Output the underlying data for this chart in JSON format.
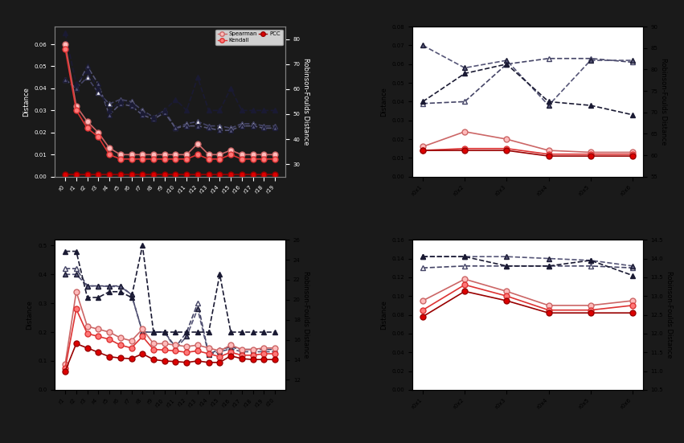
{
  "bg_color": "#1a1a1a",
  "subplot_bg_tl": "#1a1a1a",
  "subplot_bg_other": "#ffffff",
  "tl_xlabel_vals": [
    "r0",
    "r1",
    "r2",
    "r3",
    "r4",
    "r5",
    "r6",
    "r7",
    "r8",
    "r9",
    "r10",
    "r11",
    "r12",
    "r13",
    "r14",
    "r15",
    "r16",
    "r17",
    "r18",
    "r19"
  ],
  "tl_ylim": [
    0.0,
    0.068
  ],
  "tl_y2lim": [
    25,
    85
  ],
  "tl_spearman": [
    0.06,
    0.032,
    0.025,
    0.02,
    0.013,
    0.01,
    0.01,
    0.01,
    0.01,
    0.01,
    0.01,
    0.01,
    0.015,
    0.01,
    0.01,
    0.012,
    0.01,
    0.01,
    0.01,
    0.01
  ],
  "tl_kendall": [
    0.058,
    0.03,
    0.022,
    0.018,
    0.01,
    0.008,
    0.008,
    0.008,
    0.008,
    0.008,
    0.008,
    0.008,
    0.01,
    0.008,
    0.008,
    0.01,
    0.008,
    0.008,
    0.008,
    0.008
  ],
  "tl_pcc": [
    0.001,
    0.001,
    0.001,
    0.001,
    0.001,
    0.001,
    0.001,
    0.001,
    0.001,
    0.001,
    0.001,
    0.001,
    0.001,
    0.001,
    0.001,
    0.001,
    0.001,
    0.001,
    0.001,
    0.001
  ],
  "tl_tri_open": [
    0.044,
    0.04,
    0.045,
    0.038,
    0.033,
    0.035,
    0.034,
    0.03,
    0.027,
    0.03,
    0.022,
    0.024,
    0.025,
    0.023,
    0.023,
    0.022,
    0.024,
    0.024,
    0.023,
    0.023
  ],
  "tl_tri_light": [
    0.044,
    0.04,
    0.05,
    0.042,
    0.028,
    0.033,
    0.032,
    0.028,
    0.026,
    0.029,
    0.022,
    0.023,
    0.023,
    0.022,
    0.021,
    0.021,
    0.023,
    0.023,
    0.022,
    0.022
  ],
  "tl_tri_dark": [
    0.065,
    0.042,
    0.048,
    0.04,
    0.03,
    0.034,
    0.033,
    0.029,
    0.027,
    0.03,
    0.035,
    0.03,
    0.045,
    0.03,
    0.03,
    0.04,
    0.03,
    0.03,
    0.03,
    0.03
  ],
  "tr_xlabel_vals": [
    "r0x1",
    "r0x2",
    "r0x3",
    "r0x4",
    "r0x5",
    "r0x6"
  ],
  "tr_ylim": [
    0.0,
    0.08
  ],
  "tr_y2lim": [
    55,
    90
  ],
  "tr_spearman": [
    0.016,
    0.024,
    0.02,
    0.014,
    0.013,
    0.013
  ],
  "tr_kendall": [
    0.014,
    0.015,
    0.015,
    0.012,
    0.012,
    0.012
  ],
  "tr_pcc": [
    0.014,
    0.014,
    0.014,
    0.011,
    0.011,
    0.011
  ],
  "tr_tri_open": [
    0.039,
    0.04,
    0.06,
    0.063,
    0.063,
    0.061
  ],
  "tr_tri_light": [
    0.07,
    0.058,
    0.062,
    0.038,
    0.062,
    0.062
  ],
  "tr_tri_dark": [
    0.04,
    0.055,
    0.06,
    0.04,
    0.038,
    0.033
  ],
  "bl_xlabel_vals": [
    "r1",
    "r2",
    "r3",
    "r4",
    "r5",
    "r6",
    "r7",
    "r8",
    "r9",
    "r10",
    "r11",
    "r12",
    "r13",
    "r14",
    "r15",
    "r16",
    "r17",
    "r18",
    "r19",
    "r20"
  ],
  "bl_ylim": [
    0.0,
    0.52
  ],
  "bl_y2lim": [
    11,
    26
  ],
  "bl_spearman": [
    0.09,
    0.34,
    0.22,
    0.21,
    0.2,
    0.18,
    0.17,
    0.21,
    0.16,
    0.16,
    0.155,
    0.15,
    0.155,
    0.145,
    0.135,
    0.155,
    0.14,
    0.14,
    0.145,
    0.145
  ],
  "bl_kendall": [
    0.075,
    0.28,
    0.195,
    0.185,
    0.175,
    0.155,
    0.145,
    0.185,
    0.14,
    0.138,
    0.135,
    0.13,
    0.135,
    0.125,
    0.115,
    0.13,
    0.12,
    0.12,
    0.125,
    0.125
  ],
  "bl_pcc": [
    0.065,
    0.16,
    0.145,
    0.13,
    0.115,
    0.11,
    0.108,
    0.125,
    0.105,
    0.1,
    0.098,
    0.095,
    0.1,
    0.095,
    0.095,
    0.118,
    0.108,
    0.105,
    0.105,
    0.105
  ],
  "bl_tri_open": [
    0.42,
    0.42,
    0.36,
    0.36,
    0.36,
    0.36,
    0.33,
    0.2,
    0.2,
    0.2,
    0.148,
    0.2,
    0.3,
    0.124,
    0.14,
    0.148,
    0.14,
    0.14,
    0.14,
    0.14
  ],
  "bl_tri_light": [
    0.4,
    0.4,
    0.36,
    0.36,
    0.358,
    0.358,
    0.33,
    0.2,
    0.2,
    0.2,
    0.142,
    0.185,
    0.28,
    0.122,
    0.132,
    0.142,
    0.132,
    0.132,
    0.132,
    0.132
  ],
  "bl_tri_dark": [
    0.48,
    0.48,
    0.32,
    0.32,
    0.34,
    0.34,
    0.32,
    0.5,
    0.2,
    0.2,
    0.2,
    0.2,
    0.2,
    0.2,
    0.4,
    0.2,
    0.2,
    0.2,
    0.2,
    0.2
  ],
  "br_xlabel_vals": [
    "r0x1",
    "r0x2",
    "r0x3",
    "r0x4",
    "r0x5",
    "r0x6"
  ],
  "br_ylim": [
    0.0,
    0.16
  ],
  "br_y2lim": [
    10.5,
    14.5
  ],
  "br_spearman": [
    0.095,
    0.118,
    0.105,
    0.09,
    0.09,
    0.095
  ],
  "br_kendall": [
    0.085,
    0.112,
    0.1,
    0.085,
    0.085,
    0.09
  ],
  "br_pcc": [
    0.078,
    0.105,
    0.095,
    0.082,
    0.082,
    0.082
  ],
  "br_tri_open": [
    0.13,
    0.132,
    0.132,
    0.132,
    0.132,
    0.13
  ],
  "br_tri_light": [
    0.142,
    0.142,
    0.142,
    0.14,
    0.138,
    0.132
  ],
  "br_tri_dark": [
    0.142,
    0.142,
    0.132,
    0.132,
    0.138,
    0.122
  ],
  "ylabel_left": "Distance",
  "ylabel_right": "Robinson-Foulds Distance",
  "axis_fontsize": 6,
  "tick_fontsize": 5
}
